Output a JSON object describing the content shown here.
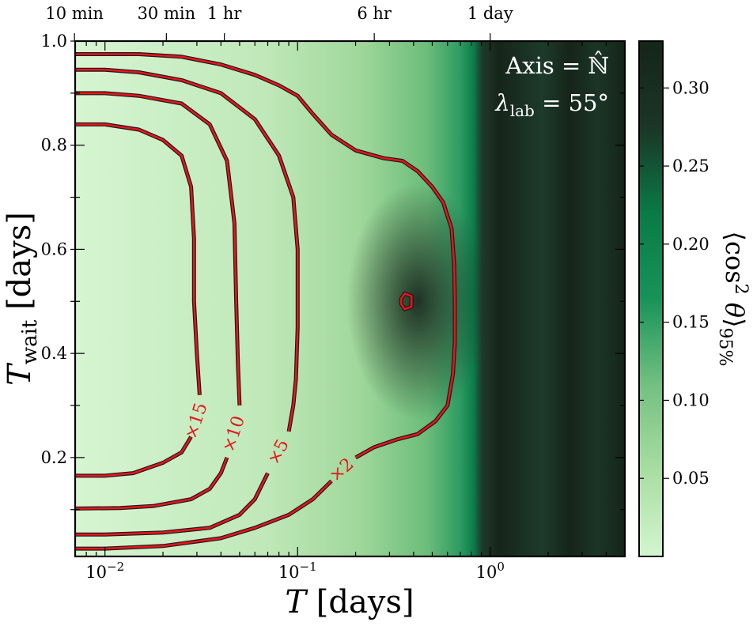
{
  "chart_data": {
    "type": "heatmap",
    "xlabel": "T [days]",
    "ylabel": "T_wait [days]",
    "x_scale": "log",
    "xlim": [
      0.007,
      5.0
    ],
    "ylim": [
      0.01,
      1.0
    ],
    "x_ticks": [
      {
        "value": 0.01,
        "label": "10−2"
      },
      {
        "value": 0.1,
        "label": "10−1"
      },
      {
        "value": 1,
        "label": "100"
      }
    ],
    "y_ticks": [
      {
        "value": 0.2,
        "label": "0.2"
      },
      {
        "value": 0.4,
        "label": "0.4"
      },
      {
        "value": 0.6,
        "label": "0.6"
      },
      {
        "value": 0.8,
        "label": "0.8"
      },
      {
        "value": 1.0,
        "label": "1.0"
      }
    ],
    "top_axis_ticks": [
      {
        "value": 0.006944,
        "label": "10 min"
      },
      {
        "value": 0.020833,
        "label": "30 min"
      },
      {
        "value": 0.041667,
        "label": "1 hr"
      },
      {
        "value": 0.25,
        "label": "6 hr"
      },
      {
        "value": 1.0,
        "label": "1 day"
      }
    ],
    "colorbar": {
      "label": "⟨cos2 θ⟩95%",
      "range": [
        0.0,
        0.33
      ],
      "ticks": [
        "0.05",
        "0.10",
        "0.15",
        "0.20",
        "0.25",
        "0.30"
      ],
      "colormap": [
        "#d3f5cf",
        "#a9dda2",
        "#73c080",
        "#19925a",
        "#0a7a47",
        "#1b3526",
        "#152519"
      ]
    },
    "annotation": {
      "line1": "Axis = ℕ̂",
      "line2": "λlab = 55°"
    },
    "contours": [
      {
        "label": "×15",
        "points": [
          [
            0.007,
            0.84
          ],
          [
            0.01,
            0.84
          ],
          [
            0.015,
            0.83
          ],
          [
            0.02,
            0.81
          ],
          [
            0.025,
            0.78
          ],
          [
            0.028,
            0.72
          ],
          [
            0.029,
            0.62
          ],
          [
            0.029,
            0.5
          ],
          [
            0.03,
            0.4
          ],
          [
            0.031,
            0.32
          ]
        ]
      },
      {
        "label": "×15",
        "points": [
          [
            0.028,
            0.24
          ],
          [
            0.025,
            0.21
          ],
          [
            0.02,
            0.19
          ],
          [
            0.014,
            0.17
          ],
          [
            0.01,
            0.165
          ],
          [
            0.007,
            0.165
          ]
        ]
      },
      {
        "label": "×10",
        "points": [
          [
            0.007,
            0.9
          ],
          [
            0.01,
            0.9
          ],
          [
            0.015,
            0.895
          ],
          [
            0.025,
            0.88
          ],
          [
            0.035,
            0.84
          ],
          [
            0.043,
            0.77
          ],
          [
            0.047,
            0.65
          ],
          [
            0.048,
            0.5
          ],
          [
            0.049,
            0.38
          ],
          [
            0.05,
            0.3
          ]
        ]
      },
      {
        "label": "×10",
        "points": [
          [
            0.043,
            0.2
          ],
          [
            0.04,
            0.17
          ],
          [
            0.035,
            0.14
          ],
          [
            0.028,
            0.12
          ],
          [
            0.018,
            0.107
          ],
          [
            0.012,
            0.103
          ],
          [
            0.007,
            0.102
          ]
        ]
      },
      {
        "label": "×5",
        "points": [
          [
            0.007,
            0.945
          ],
          [
            0.01,
            0.945
          ],
          [
            0.015,
            0.94
          ],
          [
            0.025,
            0.925
          ],
          [
            0.04,
            0.9
          ],
          [
            0.06,
            0.85
          ],
          [
            0.08,
            0.78
          ],
          [
            0.095,
            0.7
          ],
          [
            0.1,
            0.6
          ],
          [
            0.1,
            0.45
          ],
          [
            0.098,
            0.35
          ],
          [
            0.095,
            0.3
          ],
          [
            0.09,
            0.25
          ]
        ]
      },
      {
        "label": "×5",
        "points": [
          [
            0.07,
            0.17
          ],
          [
            0.06,
            0.12
          ],
          [
            0.05,
            0.09
          ],
          [
            0.035,
            0.065
          ],
          [
            0.02,
            0.056
          ],
          [
            0.01,
            0.052
          ],
          [
            0.007,
            0.052
          ]
        ]
      },
      {
        "label": "×2",
        "points": [
          [
            0.007,
            0.975
          ],
          [
            0.015,
            0.975
          ],
          [
            0.025,
            0.97
          ],
          [
            0.04,
            0.955
          ],
          [
            0.06,
            0.935
          ],
          [
            0.08,
            0.915
          ],
          [
            0.1,
            0.895
          ],
          [
            0.12,
            0.86
          ],
          [
            0.15,
            0.82
          ],
          [
            0.2,
            0.79
          ],
          [
            0.28,
            0.775
          ],
          [
            0.35,
            0.77
          ],
          [
            0.42,
            0.75
          ],
          [
            0.5,
            0.72
          ],
          [
            0.57,
            0.69
          ],
          [
            0.63,
            0.64
          ],
          [
            0.65,
            0.57
          ],
          [
            0.655,
            0.5
          ],
          [
            0.655,
            0.42
          ],
          [
            0.64,
            0.36
          ],
          [
            0.6,
            0.3
          ],
          [
            0.52,
            0.27
          ],
          [
            0.42,
            0.245
          ],
          [
            0.33,
            0.235
          ],
          [
            0.25,
            0.22
          ],
          [
            0.2,
            0.2
          ]
        ]
      },
      {
        "label": "×2",
        "points": [
          [
            0.15,
            0.155
          ],
          [
            0.12,
            0.12
          ],
          [
            0.09,
            0.09
          ],
          [
            0.06,
            0.065
          ],
          [
            0.04,
            0.045
          ],
          [
            0.02,
            0.03
          ],
          [
            0.01,
            0.025
          ],
          [
            0.007,
            0.025
          ]
        ]
      },
      {
        "label": "",
        "closed": true,
        "points": [
          [
            0.345,
            0.505
          ],
          [
            0.36,
            0.515
          ],
          [
            0.39,
            0.51
          ],
          [
            0.39,
            0.49
          ],
          [
            0.36,
            0.485
          ],
          [
            0.345,
            0.495
          ],
          [
            0.345,
            0.505
          ]
        ]
      }
    ],
    "contour_labels": [
      {
        "text": "×15",
        "x": 0.03,
        "y": 0.27,
        "angle": -72
      },
      {
        "text": "×10",
        "x": 0.047,
        "y": 0.245,
        "angle": -72
      },
      {
        "text": "×5",
        "x": 0.08,
        "y": 0.21,
        "angle": -62
      },
      {
        "text": "×2",
        "x": 0.17,
        "y": 0.175,
        "angle": -42
      }
    ]
  }
}
